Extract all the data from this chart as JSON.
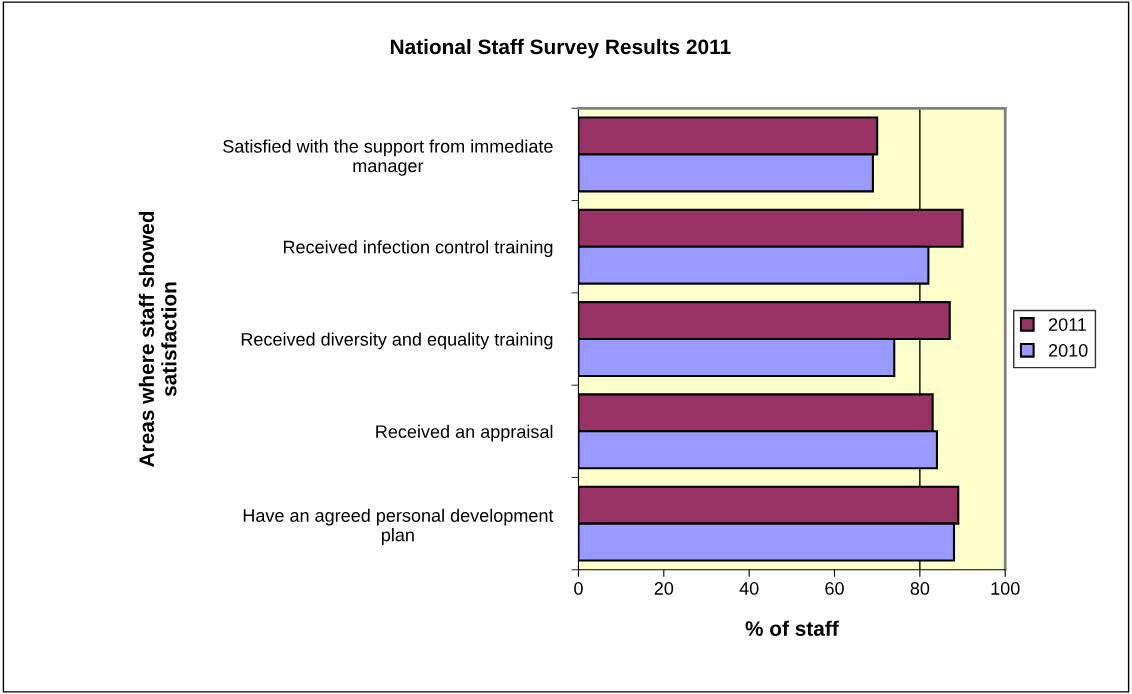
{
  "chart_data": {
    "type": "bar",
    "orientation": "horizontal",
    "title": "National Staff Survey Results 2011",
    "xlabel": "% of staff",
    "ylabel": "Areas where staff showed\nsatisfaction",
    "categories": [
      "Satisfied with the support from immediate\nmanager",
      "Received infection control training",
      "Received diversity and equality training",
      "Received an appraisal",
      "Have an agreed personal development\nplan"
    ],
    "series": [
      {
        "name": "2011",
        "color": "#993366",
        "values": [
          70,
          90,
          87,
          83,
          89
        ]
      },
      {
        "name": "2010",
        "color": "#9999ff",
        "values": [
          69,
          82,
          74,
          84,
          88
        ]
      }
    ],
    "xlim": [
      0,
      100
    ],
    "xticks": [
      0,
      20,
      40,
      60,
      80,
      100
    ],
    "grid": false,
    "legend": "right",
    "ref_lines": [
      {
        "axis": "x",
        "value": 80,
        "color": "#000000"
      }
    ]
  }
}
